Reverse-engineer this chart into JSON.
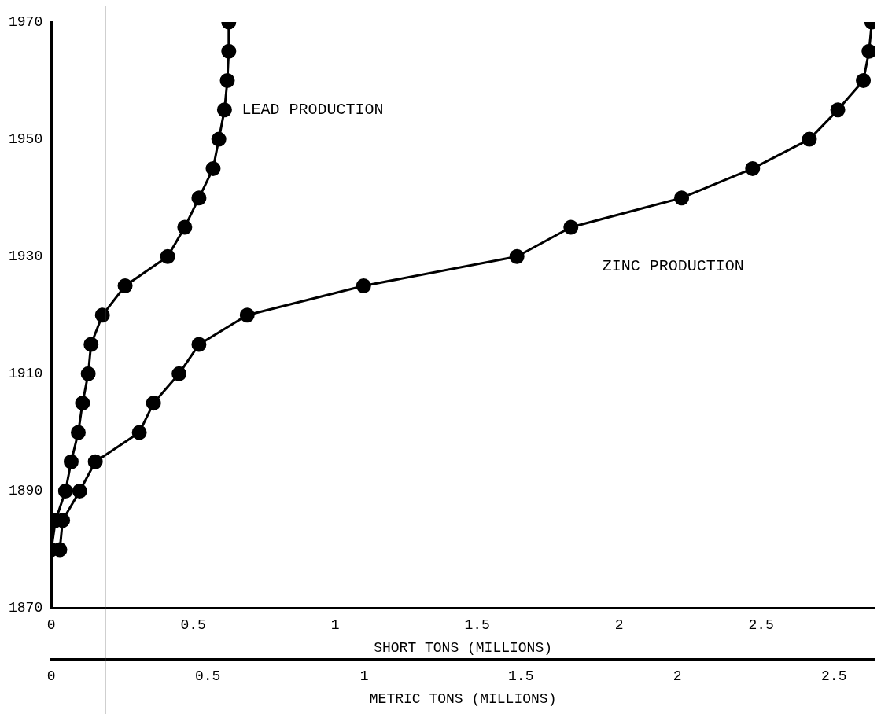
{
  "chart_data": {
    "type": "line",
    "xlabel": "SHORT TONS (MILLIONS)",
    "x2label": "METRIC TONS (MILLIONS)",
    "xlim": [
      0,
      2.9
    ],
    "xticks": [
      0,
      0.5,
      1.0,
      1.5,
      2.0,
      2.5
    ],
    "x2lim": [
      0,
      2.63
    ],
    "x2ticks": [
      0,
      0.5,
      1.0,
      1.5,
      2.0,
      2.5
    ],
    "ylim": [
      1870,
      1970
    ],
    "yticks": [
      1870,
      1890,
      1910,
      1930,
      1950,
      1970
    ],
    "grid": false,
    "legend": false,
    "marker": "circle",
    "line_style": "solid",
    "ref_lines": [
      {
        "axis": "x",
        "value": 0.19,
        "color": "#555555"
      }
    ],
    "series": [
      {
        "name": "LEAD PRODUCTION",
        "color": "#000000",
        "x": [
          0,
          0.015,
          0.05,
          0.07,
          0.095,
          0.11,
          0.13,
          0.14,
          0.18,
          0.26,
          0.41,
          0.47,
          0.52,
          0.57,
          0.59,
          0.61,
          0.62,
          0.625,
          0.625
        ],
        "values": [
          1880,
          1885,
          1890,
          1895,
          1900,
          1905,
          1910,
          1915,
          1920,
          1925,
          1930,
          1935,
          1940,
          1945,
          1950,
          1955,
          1960,
          1965,
          1970
        ]
      },
      {
        "name": "ZINC PRODUCTION",
        "color": "#000000",
        "x": [
          0.03,
          0.04,
          0.1,
          0.155,
          0.31,
          0.36,
          0.45,
          0.52,
          0.69,
          1.1,
          1.64,
          1.83,
          2.22,
          2.47,
          2.67,
          2.77,
          2.86,
          2.88,
          2.89
        ],
        "values": [
          1880,
          1885,
          1890,
          1895,
          1900,
          1905,
          1910,
          1915,
          1920,
          1925,
          1930,
          1935,
          1940,
          1945,
          1950,
          1955,
          1960,
          1965,
          1970
        ]
      }
    ]
  }
}
